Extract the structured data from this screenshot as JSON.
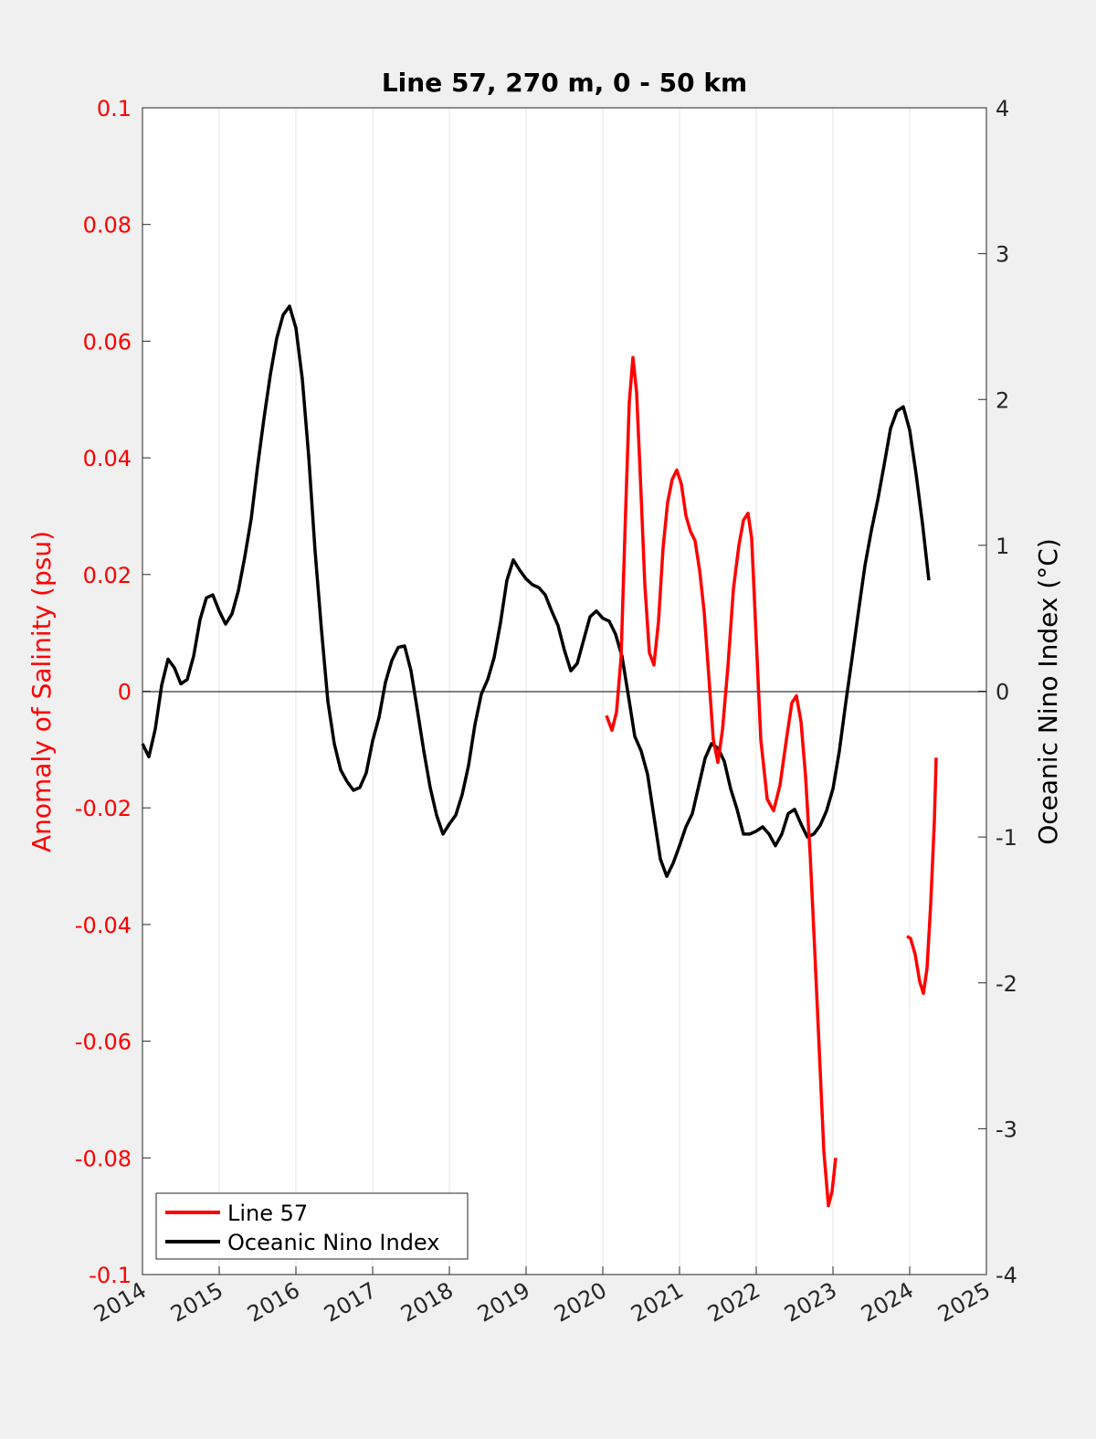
{
  "chart_data": {
    "type": "line",
    "title": "Line 57, 270 m, 0 - 50 km",
    "xlabel": "",
    "ylabel_left": "Anomaly of Salinity (psu)",
    "ylabel_right": "Oceanic Nino Index (°C)",
    "xlim": [
      2014,
      2025
    ],
    "ylim_left": [
      -0.1,
      0.1
    ],
    "ylim_right": [
      -4,
      4
    ],
    "x_ticks": [
      "2014",
      "2015",
      "2016",
      "2017",
      "2018",
      "2019",
      "2020",
      "2021",
      "2022",
      "2023",
      "2024",
      "2025"
    ],
    "y_left_ticks": [
      "0.1",
      "0.08",
      "0.06",
      "0.04",
      "0.02",
      "0",
      "-0.02",
      "-0.04",
      "-0.06",
      "-0.08",
      "-0.1"
    ],
    "y_right_ticks": [
      "4",
      "3",
      "2",
      "1",
      "0",
      "-1",
      "-2",
      "-3",
      "-4"
    ],
    "grid": "vertical",
    "legend_position": "bottom-left",
    "colors": {
      "salinity": "#ff0000",
      "oni": "#000000"
    },
    "series": [
      {
        "name": "Line 57",
        "axis": "left",
        "segments": [
          [
            [
              2020.048,
              -0.0042
            ],
            [
              2020.119,
              -0.0067
            ],
            [
              2020.179,
              -0.0036
            ],
            [
              2020.238,
              0.0058
            ],
            [
              2020.298,
              0.0309
            ],
            [
              2020.345,
              0.0496
            ],
            [
              2020.393,
              0.0572
            ],
            [
              2020.44,
              0.0512
            ],
            [
              2020.488,
              0.0371
            ],
            [
              2020.548,
              0.0183
            ],
            [
              2020.607,
              0.0066
            ],
            [
              2020.667,
              0.0045
            ],
            [
              2020.726,
              0.012
            ],
            [
              2020.786,
              0.0246
            ],
            [
              2020.845,
              0.0324
            ],
            [
              2020.905,
              0.0363
            ],
            [
              2020.964,
              0.0379
            ],
            [
              2021.024,
              0.0355
            ],
            [
              2021.083,
              0.0301
            ],
            [
              2021.143,
              0.0274
            ],
            [
              2021.202,
              0.0258
            ],
            [
              2021.262,
              0.0207
            ],
            [
              2021.321,
              0.0136
            ],
            [
              2021.381,
              0.0027
            ],
            [
              2021.44,
              -0.0083
            ],
            [
              2021.5,
              -0.0122
            ],
            [
              2021.56,
              -0.0067
            ],
            [
              2021.631,
              0.0042
            ],
            [
              2021.702,
              0.0175
            ],
            [
              2021.774,
              0.025
            ],
            [
              2021.833,
              0.0293
            ],
            [
              2021.893,
              0.0305
            ],
            [
              2021.94,
              0.0262
            ],
            [
              2022.0,
              0.0089
            ],
            [
              2022.06,
              -0.0083
            ],
            [
              2022.143,
              -0.0185
            ],
            [
              2022.226,
              -0.0205
            ],
            [
              2022.31,
              -0.0161
            ],
            [
              2022.393,
              -0.0083
            ],
            [
              2022.464,
              -0.002
            ],
            [
              2022.524,
              -0.0008
            ],
            [
              2022.583,
              -0.0052
            ],
            [
              2022.643,
              -0.0146
            ],
            [
              2022.702,
              -0.0279
            ],
            [
              2022.762,
              -0.0443
            ],
            [
              2022.821,
              -0.0615
            ],
            [
              2022.881,
              -0.0788
            ],
            [
              2022.94,
              -0.0882
            ],
            [
              2022.988,
              -0.0858
            ],
            [
              2023.036,
              -0.08
            ]
          ],
          [
            [
              2023.964,
              -0.042
            ],
            [
              2024.012,
              -0.0424
            ],
            [
              2024.071,
              -0.0451
            ],
            [
              2024.131,
              -0.0498
            ],
            [
              2024.179,
              -0.0518
            ],
            [
              2024.226,
              -0.0475
            ],
            [
              2024.274,
              -0.0365
            ],
            [
              2024.321,
              -0.0224
            ],
            [
              2024.345,
              -0.0114
            ]
          ]
        ]
      },
      {
        "name": "Oceanic Nino Index",
        "axis": "right",
        "x_start": 2014.0,
        "x_step_months": 1,
        "values": [
          -0.36,
          -0.45,
          -0.26,
          0.04,
          0.22,
          0.16,
          0.05,
          0.08,
          0.24,
          0.49,
          0.64,
          0.66,
          0.55,
          0.46,
          0.53,
          0.69,
          0.92,
          1.18,
          1.54,
          1.87,
          2.17,
          2.42,
          2.58,
          2.64,
          2.49,
          2.14,
          1.61,
          0.96,
          0.42,
          -0.07,
          -0.36,
          -0.54,
          -0.62,
          -0.68,
          -0.66,
          -0.56,
          -0.34,
          -0.18,
          0.06,
          0.21,
          0.3,
          0.31,
          0.14,
          -0.13,
          -0.41,
          -0.66,
          -0.85,
          -0.98,
          -0.91,
          -0.85,
          -0.71,
          -0.51,
          -0.23,
          -0.02,
          0.08,
          0.23,
          0.47,
          0.76,
          0.9,
          0.83,
          0.77,
          0.73,
          0.71,
          0.66,
          0.55,
          0.45,
          0.28,
          0.14,
          0.19,
          0.35,
          0.51,
          0.55,
          0.5,
          0.48,
          0.39,
          0.24,
          -0.03,
          -0.31,
          -0.41,
          -0.57,
          -0.86,
          -1.15,
          -1.27,
          -1.18,
          -1.06,
          -0.93,
          -0.84,
          -0.65,
          -0.46,
          -0.36,
          -0.39,
          -0.48,
          -0.67,
          -0.81,
          -0.98,
          -0.98,
          -0.96,
          -0.93,
          -0.98,
          -1.06,
          -0.98,
          -0.84,
          -0.81,
          -0.91,
          -1.0,
          -0.98,
          -0.92,
          -0.82,
          -0.67,
          -0.41,
          -0.08,
          0.23,
          0.55,
          0.86,
          1.1,
          1.31,
          1.55,
          1.8,
          1.92,
          1.95,
          1.79,
          1.49,
          1.15,
          0.76
        ]
      }
    ]
  }
}
